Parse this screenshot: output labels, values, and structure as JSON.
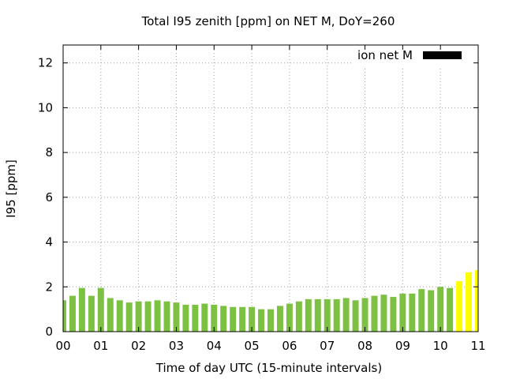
{
  "chart_data": {
    "type": "bar",
    "title": "Total I95 zenith [ppm] on NET M, DoY=260",
    "xlabel": "Time of day UTC (15-minute intervals)",
    "ylabel": "I95 [ppm]",
    "xlim": [
      0,
      11
    ],
    "ylim": [
      0,
      12.8
    ],
    "xticks": [
      "00",
      "01",
      "02",
      "03",
      "04",
      "05",
      "06",
      "07",
      "08",
      "09",
      "10",
      "11"
    ],
    "yticks": [
      "0",
      "2",
      "4",
      "6",
      "8",
      "10",
      "12"
    ],
    "grid": true,
    "legend": {
      "position": "top-right",
      "entries": [
        {
          "label": "ion net M",
          "color": "#000000"
        }
      ]
    },
    "bar_width_hours": 0.1667,
    "colors": {
      "normal": "#7cc142",
      "elevated": "#ffff00"
    },
    "series": [
      {
        "name": "ion net M",
        "x": [
          0,
          0.25,
          0.5,
          0.75,
          1,
          1.25,
          1.5,
          1.75,
          2,
          2.25,
          2.5,
          2.75,
          3,
          3.25,
          3.5,
          3.75,
          4,
          4.25,
          4.5,
          4.75,
          5,
          5.25,
          5.5,
          5.75,
          6,
          6.25,
          6.5,
          6.75,
          7,
          7.25,
          7.5,
          7.75,
          8,
          8.25,
          8.5,
          8.75,
          9,
          9.25,
          9.5,
          9.75,
          10,
          10.25,
          10.5,
          10.75,
          11
        ],
        "values": [
          1.4,
          1.6,
          1.95,
          1.6,
          1.95,
          1.5,
          1.4,
          1.3,
          1.35,
          1.35,
          1.4,
          1.35,
          1.3,
          1.2,
          1.2,
          1.25,
          1.2,
          1.15,
          1.1,
          1.1,
          1.1,
          1.0,
          1.0,
          1.15,
          1.25,
          1.35,
          1.45,
          1.45,
          1.45,
          1.45,
          1.5,
          1.4,
          1.5,
          1.6,
          1.65,
          1.55,
          1.7,
          1.7,
          1.9,
          1.85,
          2.0,
          1.95,
          2.25,
          2.65,
          2.75
        ],
        "levels": [
          "normal",
          "normal",
          "normal",
          "normal",
          "normal",
          "normal",
          "normal",
          "normal",
          "normal",
          "normal",
          "normal",
          "normal",
          "normal",
          "normal",
          "normal",
          "normal",
          "normal",
          "normal",
          "normal",
          "normal",
          "normal",
          "normal",
          "normal",
          "normal",
          "normal",
          "normal",
          "normal",
          "normal",
          "normal",
          "normal",
          "normal",
          "normal",
          "normal",
          "normal",
          "normal",
          "normal",
          "normal",
          "normal",
          "normal",
          "normal",
          "normal",
          "normal",
          "elevated",
          "elevated",
          "elevated"
        ]
      }
    ]
  }
}
